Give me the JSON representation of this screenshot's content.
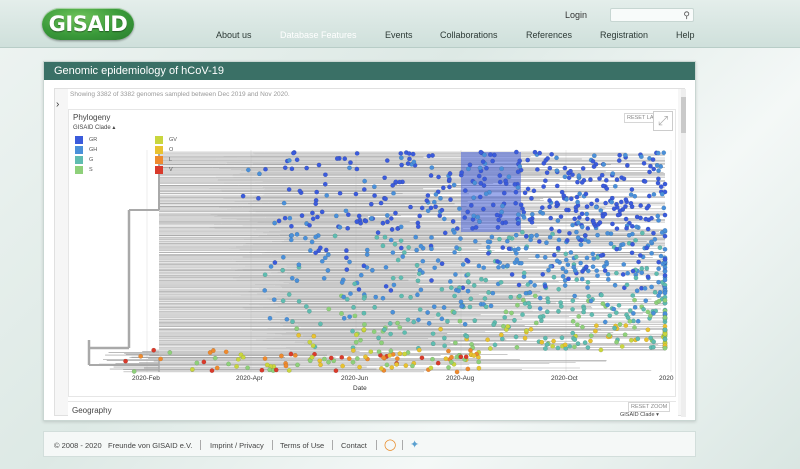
{
  "logo": {
    "text": "GISAID"
  },
  "header": {
    "login_label": "Login",
    "search_placeholder": "",
    "nav": [
      {
        "label": "About us"
      },
      {
        "label": "Database Features"
      },
      {
        "label": "Events"
      },
      {
        "label": "Collaborations"
      },
      {
        "label": "References"
      },
      {
        "label": "Registration"
      },
      {
        "label": "Help"
      }
    ],
    "active_nav": "Database Features"
  },
  "panel": {
    "title": "Genomic epidemiology of hCoV-19",
    "status": "Showing 3382 of 3382 genomes sampled between Dec 2019 and Nov 2020."
  },
  "phylogeny": {
    "title": "Phylogeny",
    "reset_layout_label": "RESET LAYOUT",
    "legend_title": "GISAID Clade",
    "legend": [
      {
        "label": "GR",
        "color": "#3b5bdb"
      },
      {
        "label": "GH",
        "color": "#4a90d9"
      },
      {
        "label": "G",
        "color": "#5fbcb0"
      },
      {
        "label": "S",
        "color": "#8ed07a"
      },
      {
        "label": "GV",
        "color": "#c9d63e"
      },
      {
        "label": "O",
        "color": "#e8c230"
      },
      {
        "label": "L",
        "color": "#ee8a2e"
      },
      {
        "label": "V",
        "color": "#d93a2b"
      }
    ],
    "x_axis_title": "Date",
    "x_ticks": [
      "2020-Feb",
      "2020-Apr",
      "2020-Jun",
      "2020-Aug",
      "2020-Oct",
      "2020"
    ]
  },
  "geography": {
    "title": "Geography",
    "reset_zoom_label": "RESET ZOOM",
    "color_by": "GISAID Clade"
  },
  "footer": {
    "copyright": "© 2008 - 2020",
    "org": "Freunde von GISAID e.V.",
    "imprint": "Imprint / Privacy",
    "terms": "Terms of Use",
    "contact": "Contact"
  }
}
